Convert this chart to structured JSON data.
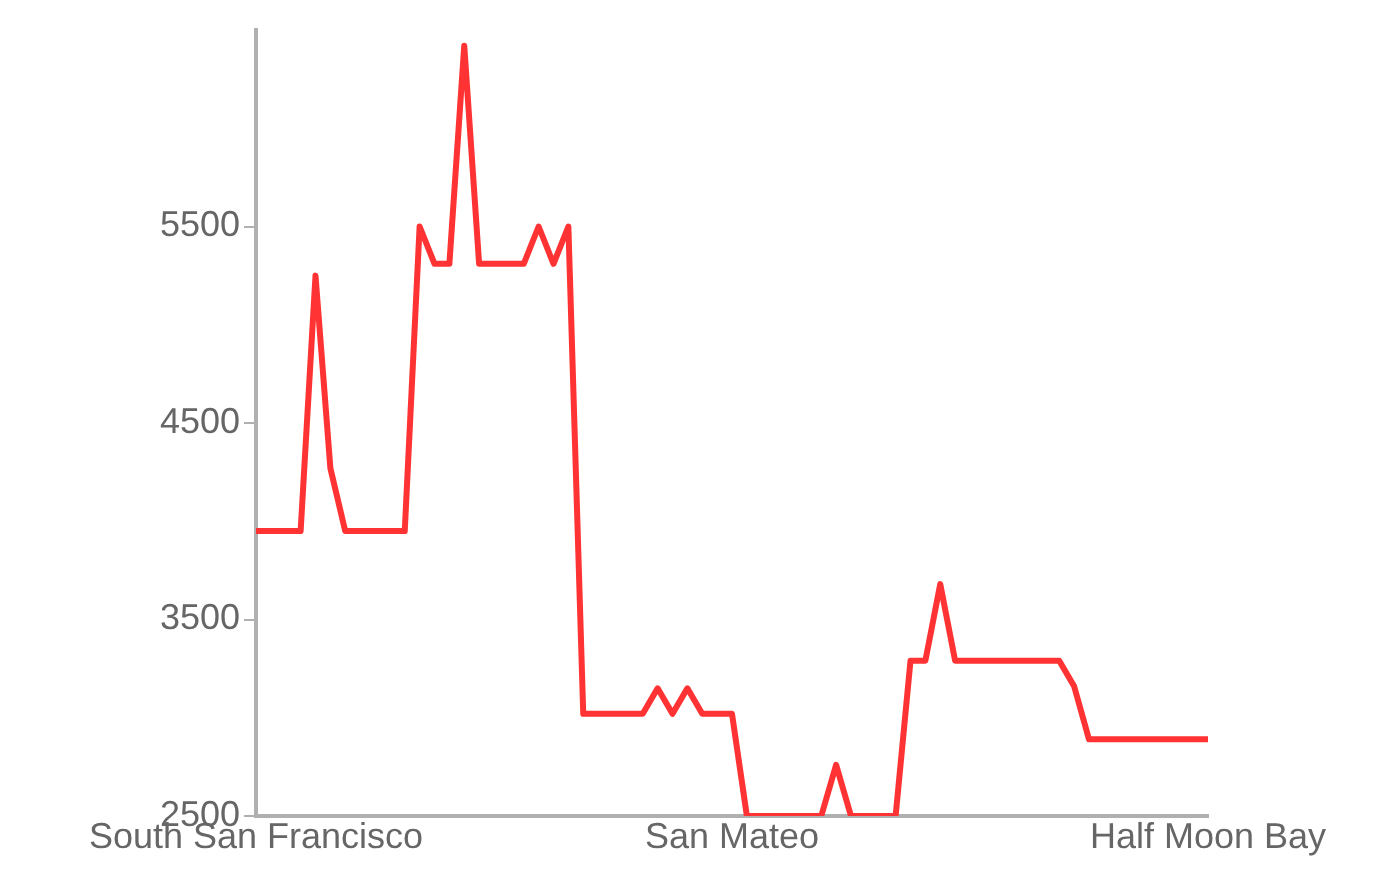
{
  "chart_data": {
    "type": "line",
    "categories": [
      "South San Francisco",
      null,
      null,
      null,
      null,
      null,
      null,
      null,
      null,
      null,
      null,
      null,
      null,
      null,
      null,
      null,
      null,
      null,
      null,
      null,
      null,
      null,
      null,
      null,
      null,
      null,
      null,
      null,
      null,
      null,
      null,
      null,
      "San Mateo",
      null,
      null,
      null,
      null,
      null,
      null,
      null,
      null,
      null,
      null,
      null,
      null,
      null,
      null,
      null,
      null,
      null,
      null,
      null,
      null,
      null,
      null,
      null,
      null,
      null,
      null,
      null,
      null,
      null,
      null,
      null,
      "Half Moon Bay"
    ],
    "series": [
      {
        "color": "#ff3333",
        "values": [
          3950,
          3950,
          3950,
          3950,
          5250,
          4270,
          3950,
          3950,
          3950,
          3950,
          3950,
          5500,
          5310,
          5310,
          6420,
          5310,
          5310,
          5310,
          5310,
          5500,
          5310,
          5500,
          3020,
          3020,
          3020,
          3020,
          3020,
          3150,
          3020,
          3150,
          3020,
          3020,
          3020,
          2500,
          2500,
          2500,
          2500,
          2500,
          2500,
          2760,
          2500,
          2500,
          2500,
          2500,
          3290,
          3290,
          3680,
          3290,
          3290,
          3290,
          3290,
          3290,
          3290,
          3290,
          3290,
          3160,
          2890,
          2890,
          2890,
          2890,
          2890,
          2890,
          2890,
          2890,
          2890
        ]
      }
    ],
    "ylim": [
      2500,
      6500
    ],
    "yticks": [
      2500,
      3500,
      4500,
      5500
    ],
    "grid": false,
    "legend": false,
    "marker": "none",
    "line_style": "solid"
  }
}
